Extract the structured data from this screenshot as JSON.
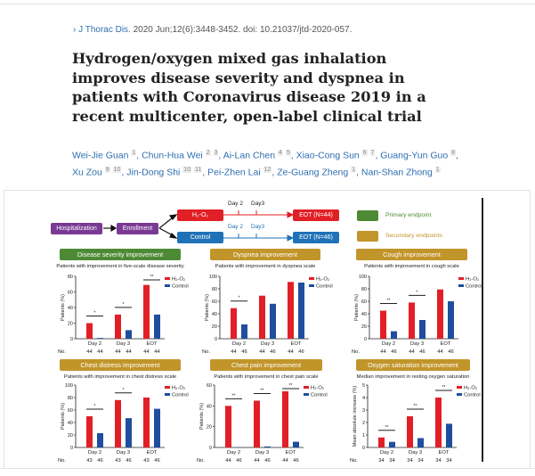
{
  "citation": {
    "journal": "J Thorac Dis.",
    "details": "2020 Jun;12(6):3448-3452. doi: 10.21037/jtd-2020-057."
  },
  "title": "Hydrogen/oxygen mixed gas inhalation improves disease severity and dyspnea in patients with Coronavirus disease 2019 in a recent multicenter, open-label clinical trial",
  "authors": [
    {
      "name": "Wei-Jie Guan",
      "aff": [
        "1"
      ]
    },
    {
      "name": "Chun-Hua Wei",
      "aff": [
        "2",
        "3"
      ]
    },
    {
      "name": "Ai-Lan Chen",
      "aff": [
        "4",
        "5"
      ]
    },
    {
      "name": "Xiao-Cong Sun",
      "aff": [
        "6",
        "7"
      ]
    },
    {
      "name": "Guang-Yun Guo",
      "aff": [
        "8"
      ]
    },
    {
      "name": "Xu Zou",
      "aff": [
        "9",
        "10"
      ]
    },
    {
      "name": "Jin-Dong Shi",
      "aff": [
        "10",
        "11"
      ]
    },
    {
      "name": "Pei-Zhen Lai",
      "aff": [
        "12"
      ]
    },
    {
      "name": "Ze-Guang Zheng",
      "aff": [
        "1"
      ]
    },
    {
      "name": "Nan-Shan Zhong",
      "aff": [
        "1"
      ]
    }
  ],
  "flow": {
    "hospitalization": "Hospitalization",
    "enrollment": "Enrollment",
    "h2o2": "H₂-O₂",
    "control": "Control",
    "day2": "Day 2",
    "day3": "Day3",
    "eot_h2": "EOT (N=44)",
    "eot_c": "EOT (N=46)",
    "primary": "Primary endpoint",
    "secondary": "Secondary endpoints"
  },
  "colors": {
    "h2": "#e21f26",
    "control": "#1f4e9e",
    "primary": "#4e8a35",
    "secondary": "#c1952a"
  },
  "legend": {
    "h2": "H₂-O₂",
    "control": "Control"
  },
  "no_label": "No.",
  "chart_data": [
    {
      "type": "bar",
      "header": "Disease severity improvement",
      "endpoint": "primary",
      "title": "Patients with improvement in five-scale disease severity",
      "ylabel": "Patients (%)",
      "ylim": [
        0,
        80
      ],
      "yticks": [
        "0",
        "20",
        "40",
        "60",
        "80"
      ],
      "categories": [
        "Day 2",
        "Day 3",
        "EOT"
      ],
      "series": [
        {
          "name": "H₂-O₂",
          "values": [
            20,
            31,
            69
          ]
        },
        {
          "name": "Control",
          "values": [
            1,
            11,
            31
          ]
        }
      ],
      "significance": [
        "*",
        "*",
        "**"
      ],
      "n": [
        [
          "44",
          "44"
        ],
        [
          "44",
          "44"
        ],
        [
          "44",
          "44"
        ]
      ]
    },
    {
      "type": "bar",
      "header": "Dyspnea improvement",
      "endpoint": "secondary",
      "title": "Patients with improvement in dyspnea scale",
      "ylabel": "Patients (%)",
      "ylim": [
        0,
        100
      ],
      "yticks": [
        "0",
        "20",
        "40",
        "60",
        "80",
        "100"
      ],
      "categories": [
        "Day 2",
        "Day 3",
        "EOT"
      ],
      "series": [
        {
          "name": "H₂-O₂",
          "values": [
            49,
            69,
            91
          ]
        },
        {
          "name": "Control",
          "values": [
            23,
            56,
            90
          ]
        }
      ],
      "significance": [
        "*",
        "",
        ""
      ],
      "n": [
        [
          "44",
          "46"
        ],
        [
          "44",
          "46"
        ],
        [
          "44",
          "46"
        ]
      ]
    },
    {
      "type": "bar",
      "header": "Cough improvement",
      "endpoint": "secondary",
      "title": "Patients with improvement in cough scale",
      "ylabel": "Patients (%)",
      "ylim": [
        0,
        100
      ],
      "yticks": [
        "0",
        "20",
        "40",
        "60",
        "80",
        "100"
      ],
      "categories": [
        "Day 2",
        "Day 3",
        "EOT"
      ],
      "series": [
        {
          "name": "H₂-O₂",
          "values": [
            45,
            58,
            79
          ]
        },
        {
          "name": "Control",
          "values": [
            12,
            30,
            60
          ]
        }
      ],
      "significance": [
        "**",
        "*",
        ""
      ],
      "n": [
        [
          "44",
          "46"
        ],
        [
          "44",
          "46"
        ],
        [
          "44",
          "46"
        ]
      ]
    },
    {
      "type": "bar",
      "header": "Chest distress improvement",
      "endpoint": "secondary",
      "title": "Patients with improvement in chest distress scale",
      "ylabel": "Patients (%)",
      "ylim": [
        0,
        100
      ],
      "yticks": [
        "0",
        "20",
        "40",
        "60",
        "80",
        "100"
      ],
      "categories": [
        "Day 2",
        "Day 3",
        "EOT"
      ],
      "series": [
        {
          "name": "H₂-O₂",
          "values": [
            50,
            76,
            80
          ]
        },
        {
          "name": "Control",
          "values": [
            23,
            47,
            62
          ]
        }
      ],
      "significance": [
        "*",
        "*",
        ""
      ],
      "n": [
        [
          "43",
          "46"
        ],
        [
          "43",
          "46"
        ],
        [
          "43",
          "46"
        ]
      ]
    },
    {
      "type": "bar",
      "header": "Chest pain improvement",
      "endpoint": "secondary",
      "title": "Patients with improvement in chest pain scale",
      "ylabel": "Patients (%)",
      "ylim": [
        0,
        60
      ],
      "yticks": [
        "0",
        "20",
        "40",
        "60"
      ],
      "categories": [
        "Day 2",
        "Day 3",
        "EOT"
      ],
      "series": [
        {
          "name": "H₂-O₂",
          "values": [
            40,
            45,
            54
          ]
        },
        {
          "name": "Control",
          "values": [
            0,
            1,
            5.5
          ]
        }
      ],
      "significance": [
        "**",
        "**",
        "**"
      ],
      "n": [
        [
          "44",
          "46"
        ],
        [
          "44",
          "46"
        ],
        [
          "44",
          "46"
        ]
      ]
    },
    {
      "type": "bar",
      "header": "Oxygen saturation improvement",
      "endpoint": "secondary",
      "title": "Median improvement in resting oxygen saturation",
      "ylabel": "Mean absolute increase (%)",
      "ylim": [
        0,
        5
      ],
      "yticks": [
        "0",
        "1",
        "2",
        "3",
        "4",
        "5"
      ],
      "categories": [
        "Day 2",
        "Day 3",
        "EOT"
      ],
      "series": [
        {
          "name": "H₂-O₂",
          "values": [
            0.8,
            2.5,
            4.0
          ]
        },
        {
          "name": "Control",
          "values": [
            0.45,
            0.75,
            1.9
          ]
        }
      ],
      "significance": [
        "**",
        "**",
        "**"
      ],
      "n": [
        [
          "34",
          "34"
        ],
        [
          "34",
          "34"
        ],
        [
          "34",
          "34"
        ]
      ]
    }
  ]
}
